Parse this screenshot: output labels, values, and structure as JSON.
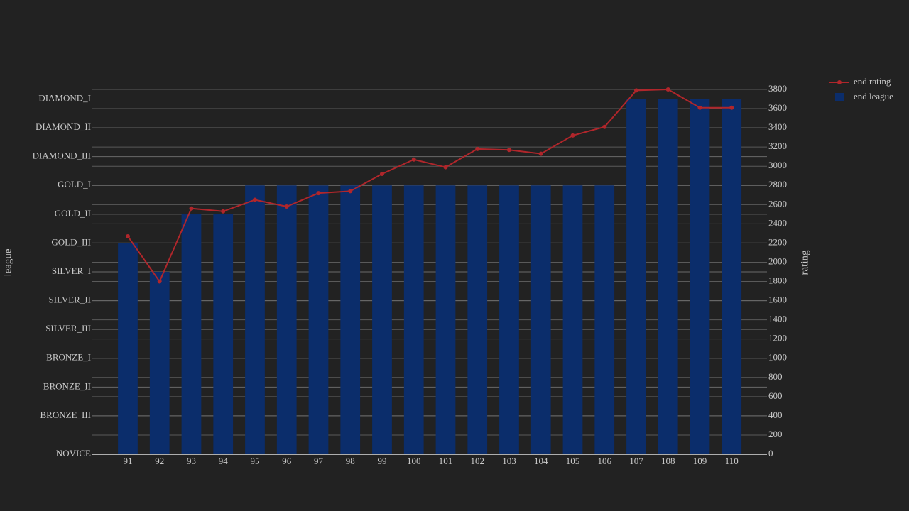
{
  "chart_data": {
    "type": "bar_line",
    "categories": [
      "91",
      "92",
      "93",
      "94",
      "95",
      "96",
      "97",
      "98",
      "99",
      "100",
      "101",
      "102",
      "103",
      "104",
      "105",
      "106",
      "107",
      "108",
      "109",
      "110"
    ],
    "ylabel": "league",
    "y2label": "rating",
    "ylim": [
      0,
      3800
    ],
    "yticks": [
      {
        "value": 0,
        "label": "NOVICE"
      },
      {
        "value": 400,
        "label": "BRONZE_III"
      },
      {
        "value": 700,
        "label": "BRONZE_II"
      },
      {
        "value": 1000,
        "label": "BRONZE_I"
      },
      {
        "value": 1300,
        "label": "SILVER_III"
      },
      {
        "value": 1600,
        "label": "SILVER_II"
      },
      {
        "value": 1900,
        "label": "SILVER_I"
      },
      {
        "value": 2200,
        "label": "GOLD_III"
      },
      {
        "value": 2500,
        "label": "GOLD_II"
      },
      {
        "value": 2800,
        "label": "GOLD_I"
      },
      {
        "value": 3100,
        "label": "DIAMOND_III"
      },
      {
        "value": 3400,
        "label": "DIAMOND_II"
      },
      {
        "value": 3700,
        "label": "DIAMOND_I"
      }
    ],
    "y2lim": [
      0,
      3800
    ],
    "y2ticks": [
      0,
      200,
      400,
      600,
      800,
      1000,
      1200,
      1400,
      1600,
      1800,
      2000,
      2200,
      2400,
      2600,
      2800,
      3000,
      3200,
      3400,
      3600,
      3800
    ],
    "grid": true,
    "series": [
      {
        "name": "end rating",
        "type": "line",
        "axis": "y2",
        "color": "#b0262b",
        "values": [
          2270,
          1800,
          2560,
          2530,
          2650,
          2580,
          2720,
          2740,
          2920,
          3070,
          2990,
          3180,
          3170,
          3130,
          3320,
          3410,
          3790,
          3800,
          3610,
          3610
        ]
      },
      {
        "name": "end league",
        "type": "bar",
        "color": "#0b2d6b",
        "values": [
          2200,
          1900,
          2500,
          2500,
          2800,
          2800,
          2800,
          2800,
          2800,
          2800,
          2800,
          2800,
          2800,
          2800,
          2800,
          2800,
          3700,
          3700,
          3700,
          3700
        ]
      }
    ]
  }
}
